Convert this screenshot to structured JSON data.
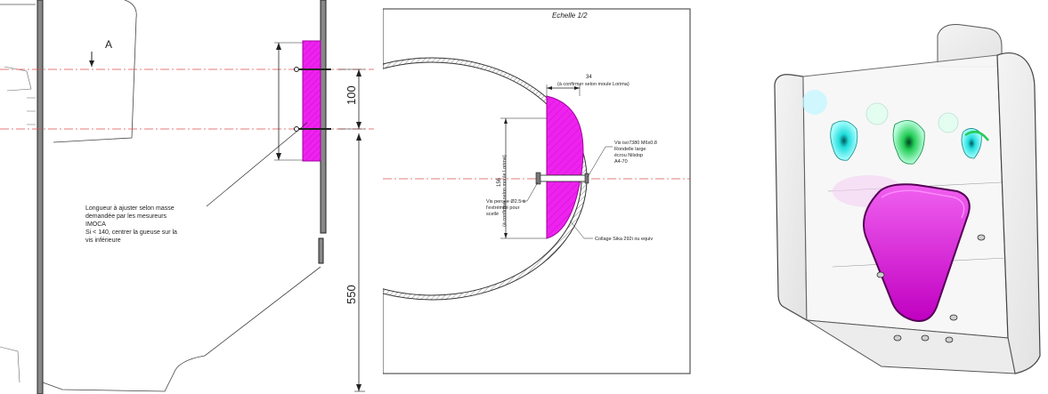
{
  "left_view": {
    "section_marker": "A",
    "dim_spacing": "100",
    "dim_height": "550",
    "note_lines": [
      "Longueur à ajuster selon masse",
      "demandée par les mesureurs",
      "IMOCA",
      "Si < 140, centrer la gueuse sur la",
      "vis inférieure"
    ]
  },
  "detail_view": {
    "scale": "Echelle 1/2",
    "dim_depth": "34",
    "dim_depth_note": "(à confirmer selon moule Lorima)",
    "dim_height": "156",
    "dim_height_note": "(à confirmer selon moule Lorima)",
    "screw_note_lines": [
      "Vis iso7380 M6x0.8",
      "Rondelle large",
      "écrou Nilstop",
      "A4-70"
    ],
    "drilled_screw_lines": [
      "Vis percée Ø2.5 à",
      "l'extrémité pour",
      "scellé"
    ],
    "glue_note": "Collage Sika 292i ou equiv"
  },
  "colors": {
    "ballast": "#ee22ee",
    "centerline": "#e05050",
    "hull": "#333333",
    "cyan_part": "#22dddd",
    "green_part": "#22cc55"
  }
}
